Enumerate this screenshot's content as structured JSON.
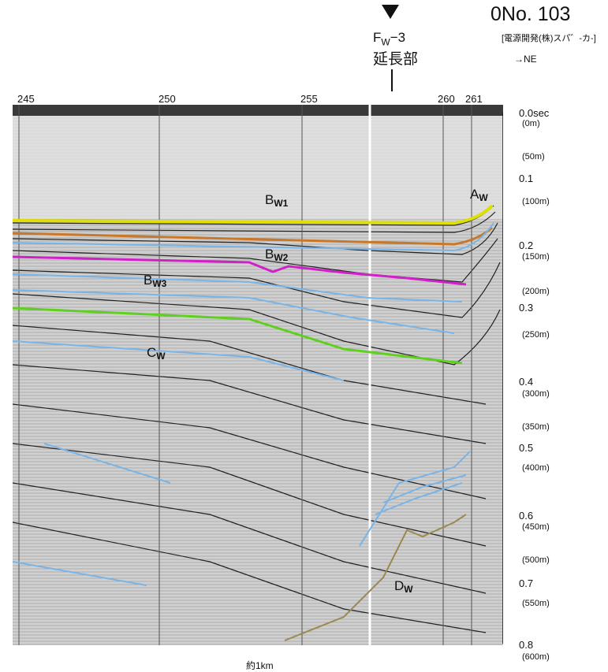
{
  "header": {
    "record_number": "0No. 103",
    "source": "[電源開発(株)スパ゛-カ-]",
    "direction": "→NE"
  },
  "fault": {
    "name": "Fw-3",
    "name_main": "F",
    "name_sub": "W",
    "name_suffix": "−3",
    "extension": "延長部"
  },
  "shot_points": [
    "245",
    "250",
    "255",
    "260",
    "261"
  ],
  "time_axis": [
    {
      "time": "0.0sec",
      "depth": "(0m)"
    },
    {
      "time": "",
      "depth": "(50m)"
    },
    {
      "time": "0.1",
      "depth": "(100m)"
    },
    {
      "time": "0.2",
      "depth": "(150m)"
    },
    {
      "time": "",
      "depth": "(200m)"
    },
    {
      "time": "0.3",
      "depth": "(250m)"
    },
    {
      "time": "0.4",
      "depth": "(300m)"
    },
    {
      "time": "",
      "depth": "(350m)"
    },
    {
      "time": "0.5",
      "depth": "(400m)"
    },
    {
      "time": "0.6",
      "depth": "(450m)"
    },
    {
      "time": "",
      "depth": "(500m)"
    },
    {
      "time": "0.7",
      "depth": "(550m)"
    },
    {
      "time": "0.8",
      "depth": "(600m)"
    }
  ],
  "horizons": {
    "aw": {
      "main": "A",
      "sub": "W"
    },
    "bw1": {
      "main": "B",
      "sub": "W1"
    },
    "bw2": {
      "main": "B",
      "sub": "W2"
    },
    "bw3": {
      "main": "B",
      "sub": "W3"
    },
    "cw": {
      "main": "C",
      "sub": "W"
    },
    "dw": {
      "main": "D",
      "sub": "W"
    }
  },
  "colors": {
    "aw": "#e0e000",
    "bw1": "#c87828",
    "bw2": "#d020c8",
    "bw3_cw_green": "#60d020",
    "reflector_blue": "#7ab4e6",
    "dw": "#9a8a50"
  },
  "scale_bar": "約1km"
}
